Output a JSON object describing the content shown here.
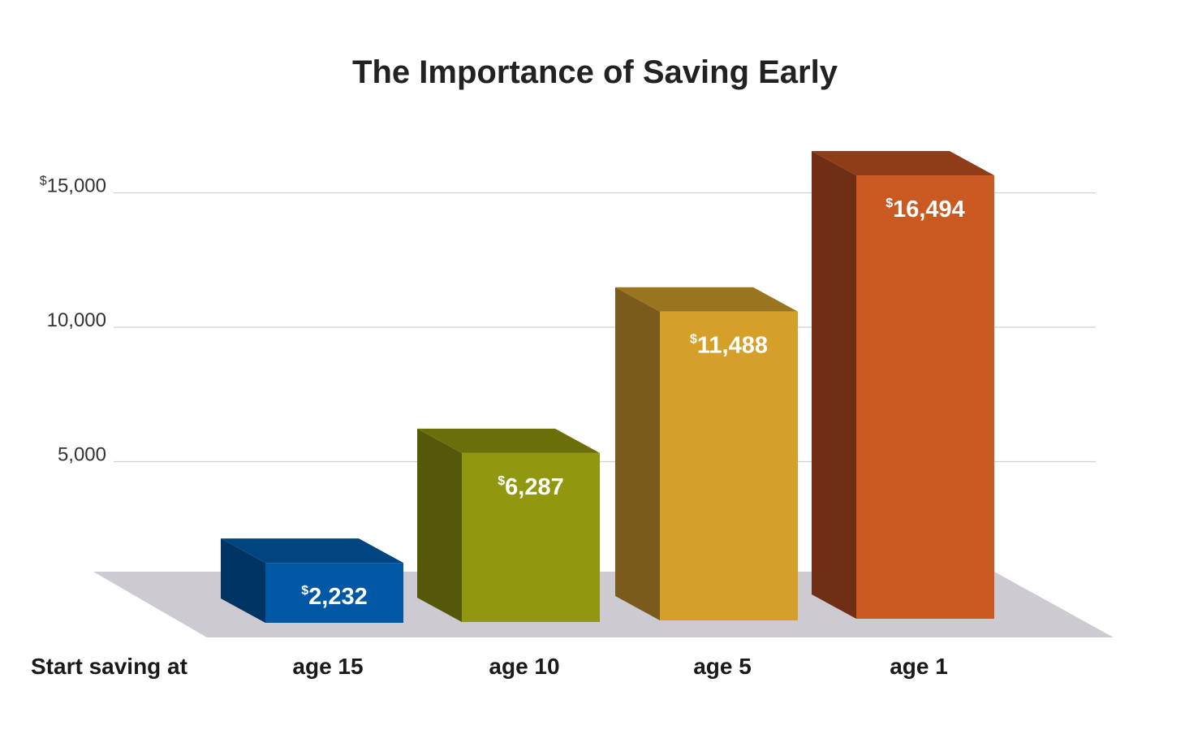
{
  "chart_data": {
    "type": "bar",
    "title": "The Importance of Saving Early",
    "xlabel": "Start saving at",
    "ylabel": "",
    "categories": [
      "age 15",
      "age 10",
      "age 5",
      "age 1"
    ],
    "values": [
      2232,
      6287,
      11488,
      16494
    ],
    "value_labels": [
      "2,232",
      "6,287",
      "11,488",
      "16,494"
    ],
    "currency_symbol": "$",
    "yticks": [
      {
        "value": 5000,
        "label": "5,000",
        "prefix": ""
      },
      {
        "value": 10000,
        "label": "10,000",
        "prefix": ""
      },
      {
        "value": 15000,
        "label": "15,000",
        "prefix": "$"
      }
    ],
    "ylim": [
      0,
      17000
    ],
    "grid": true,
    "legend": "none",
    "colors": {
      "bars": [
        {
          "front": "#0057a3",
          "side": "#003463",
          "top": "#00457f"
        },
        {
          "front": "#919810",
          "side": "#555808",
          "top": "#6b6f0a"
        },
        {
          "front": "#d5a02a",
          "side": "#7b5b1b",
          "top": "#9a7520"
        },
        {
          "front": "#cb5a22",
          "side": "#702f15",
          "top": "#8f3d18"
        }
      ],
      "floor": "#cdcbd1",
      "grid": "#cfcfcf"
    }
  }
}
